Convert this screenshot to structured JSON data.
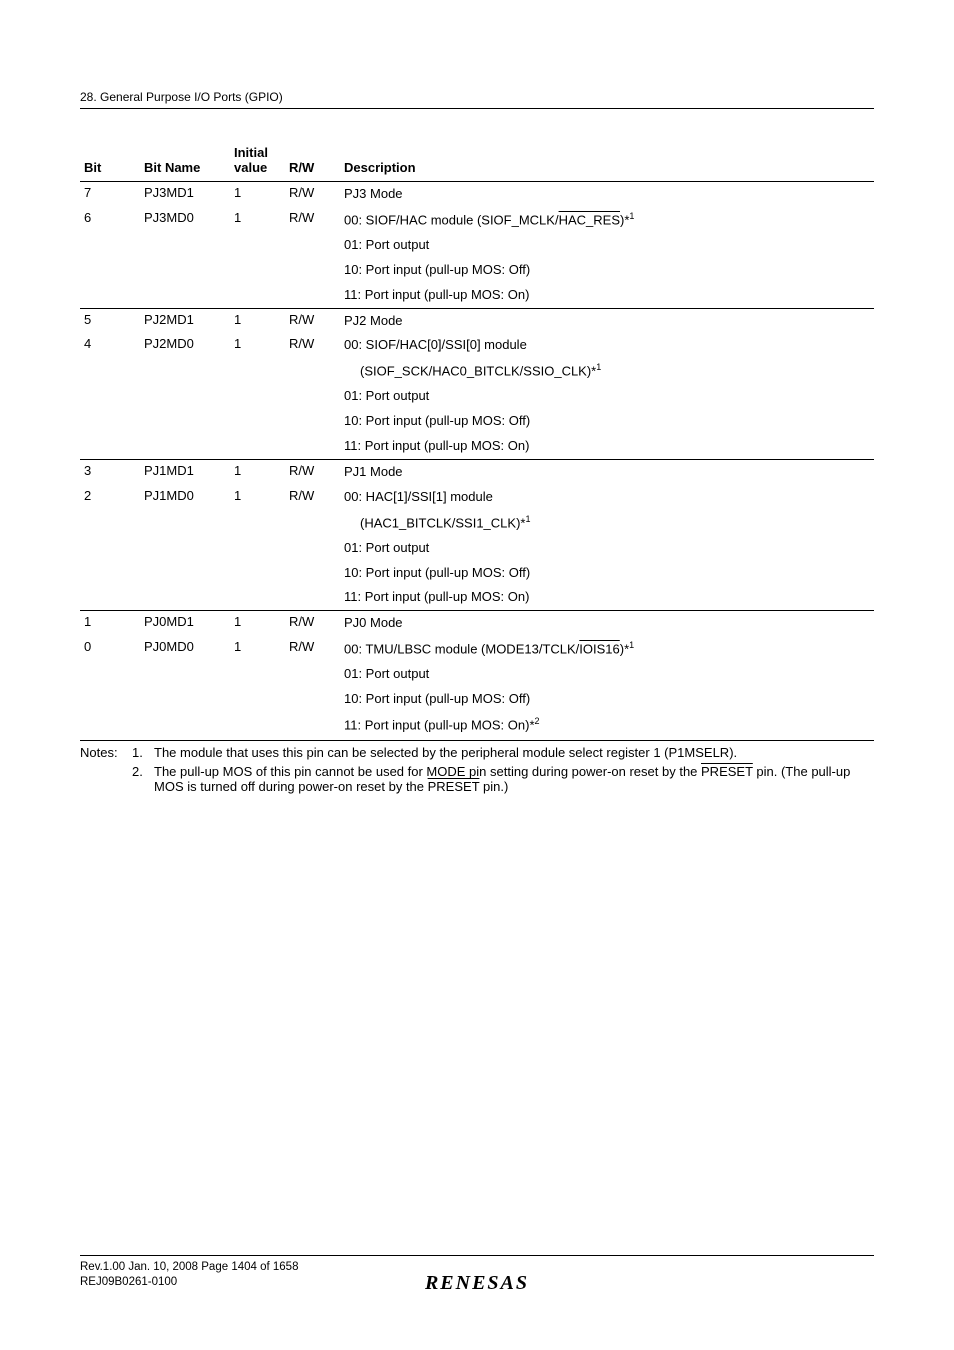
{
  "header": {
    "section": "28.  General Purpose I/O Ports (GPIO)"
  },
  "table": {
    "columns": {
      "bit": "Bit",
      "bitname": "Bit Name",
      "initial": "Initial value",
      "rw": "R/W",
      "description": "Description"
    },
    "groups": [
      {
        "rows": [
          {
            "bit": "7",
            "bitname": "PJ3MD1",
            "initial": "1",
            "rw": "R/W",
            "desc_first": "PJ3 Mode"
          },
          {
            "bit": "6",
            "bitname": "PJ3MD0",
            "initial": "1",
            "rw": "R/W",
            "desc_first": "00: SIOF/HAC module (SIOF_MCLK/",
            "desc_over": "HAC_RES",
            "desc_after": ")*",
            "sup": "1"
          }
        ],
        "desc_lines": [
          "01: Port output",
          "10: Port input (pull-up MOS: Off)",
          "11: Port input (pull-up MOS: On)"
        ]
      },
      {
        "rows": [
          {
            "bit": "5",
            "bitname": "PJ2MD1",
            "initial": "1",
            "rw": "R/W",
            "desc_first": "PJ2 Mode"
          },
          {
            "bit": "4",
            "bitname": "PJ2MD0",
            "initial": "1",
            "rw": "R/W",
            "desc_first": "00: SIOF/HAC[0]/SSI[0] module"
          }
        ],
        "desc_cont": {
          "text": "(SIOF_SCK/HAC0_BITCLK/SSIO_CLK)*",
          "sup": "1"
        },
        "desc_lines": [
          "01: Port output",
          "10: Port input (pull-up MOS: Off)",
          "11: Port input (pull-up MOS: On)"
        ]
      },
      {
        "rows": [
          {
            "bit": "3",
            "bitname": "PJ1MD1",
            "initial": "1",
            "rw": "R/W",
            "desc_first": "PJ1 Mode"
          },
          {
            "bit": "2",
            "bitname": "PJ1MD0",
            "initial": "1",
            "rw": "R/W",
            "desc_first": "00: HAC[1]/SSI[1] module"
          }
        ],
        "desc_cont": {
          "text": "(HAC1_BITCLK/SSI1_CLK)*",
          "sup": "1"
        },
        "desc_lines": [
          "01: Port output",
          "10: Port input (pull-up MOS: Off)",
          "11: Port input (pull-up MOS: On)"
        ]
      },
      {
        "rows": [
          {
            "bit": "1",
            "bitname": "PJ0MD1",
            "initial": "1",
            "rw": "R/W",
            "desc_first": "PJ0 Mode"
          },
          {
            "bit": "0",
            "bitname": "PJ0MD0",
            "initial": "1",
            "rw": "R/W",
            "desc_first": "00: TMU/LBSC module (MODE13/TCLK/",
            "desc_over": "IOIS16",
            "desc_after": ")*",
            "sup": "1"
          }
        ],
        "desc_lines": [
          "01: Port output",
          "10: Port input (pull-up MOS: Off)"
        ],
        "desc_last": {
          "text": "11: Port input (pull-up MOS: On)*",
          "sup": "2"
        }
      }
    ]
  },
  "notes": {
    "label": "Notes:",
    "items": [
      {
        "num": "1.",
        "text": "The module that uses this pin can be selected by the peripheral module select register 1 (P1MSELR)."
      },
      {
        "num": "2.",
        "pre": "The pull-up MOS of this pin cannot be used for MODE pin setting during power-on reset by the ",
        "over1": "PRESET",
        "mid": " pin. (The pull-up MOS is turned off during power-on reset by the ",
        "over2": "PRESET",
        "post": " pin.)"
      }
    ]
  },
  "footer": {
    "line1": "Rev.1.00  Jan. 10, 2008  Page 1404 of 1658",
    "line2": "REJ09B0261-0100",
    "logo": "RENESAS"
  }
}
